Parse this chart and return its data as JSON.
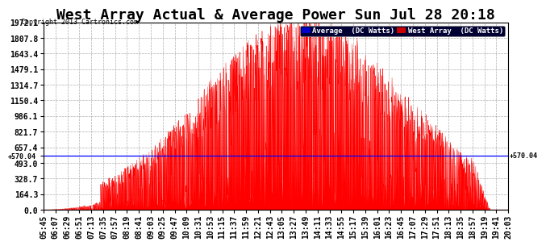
{
  "title": "West Array Actual & Average Power Sun Jul 28 20:18",
  "copyright": "Copyright 2013 Cartronics.com",
  "yticks": [
    0.0,
    164.3,
    328.7,
    493.0,
    657.4,
    821.7,
    986.1,
    1150.4,
    1314.7,
    1479.1,
    1643.4,
    1807.8,
    1972.1
  ],
  "ymax": 1972.1,
  "ymin": 0.0,
  "average_line": 570.04,
  "xtick_labels": [
    "05:45",
    "06:07",
    "06:29",
    "06:51",
    "07:13",
    "07:35",
    "07:57",
    "08:19",
    "08:41",
    "09:03",
    "09:25",
    "09:47",
    "10:09",
    "10:31",
    "10:53",
    "11:15",
    "11:37",
    "11:59",
    "12:21",
    "12:43",
    "13:05",
    "13:27",
    "13:49",
    "14:11",
    "14:33",
    "14:55",
    "15:17",
    "15:39",
    "16:01",
    "16:23",
    "16:45",
    "17:07",
    "17:29",
    "17:51",
    "18:13",
    "18:35",
    "18:57",
    "19:19",
    "19:41",
    "20:03"
  ],
  "bg_color": "#ffffff",
  "plot_bg_color": "#ffffff",
  "grid_color": "#999999",
  "fill_color": "#ff0000",
  "average_color": "#0000ff",
  "legend_avg_bg": "#0000cc",
  "legend_west_bg": "#cc0000",
  "legend_avg_text": "Average  (DC Watts)",
  "legend_west_text": "West Array  (DC Watts)",
  "title_fontsize": 13,
  "tick_fontsize": 7,
  "copyright_fontsize": 6
}
